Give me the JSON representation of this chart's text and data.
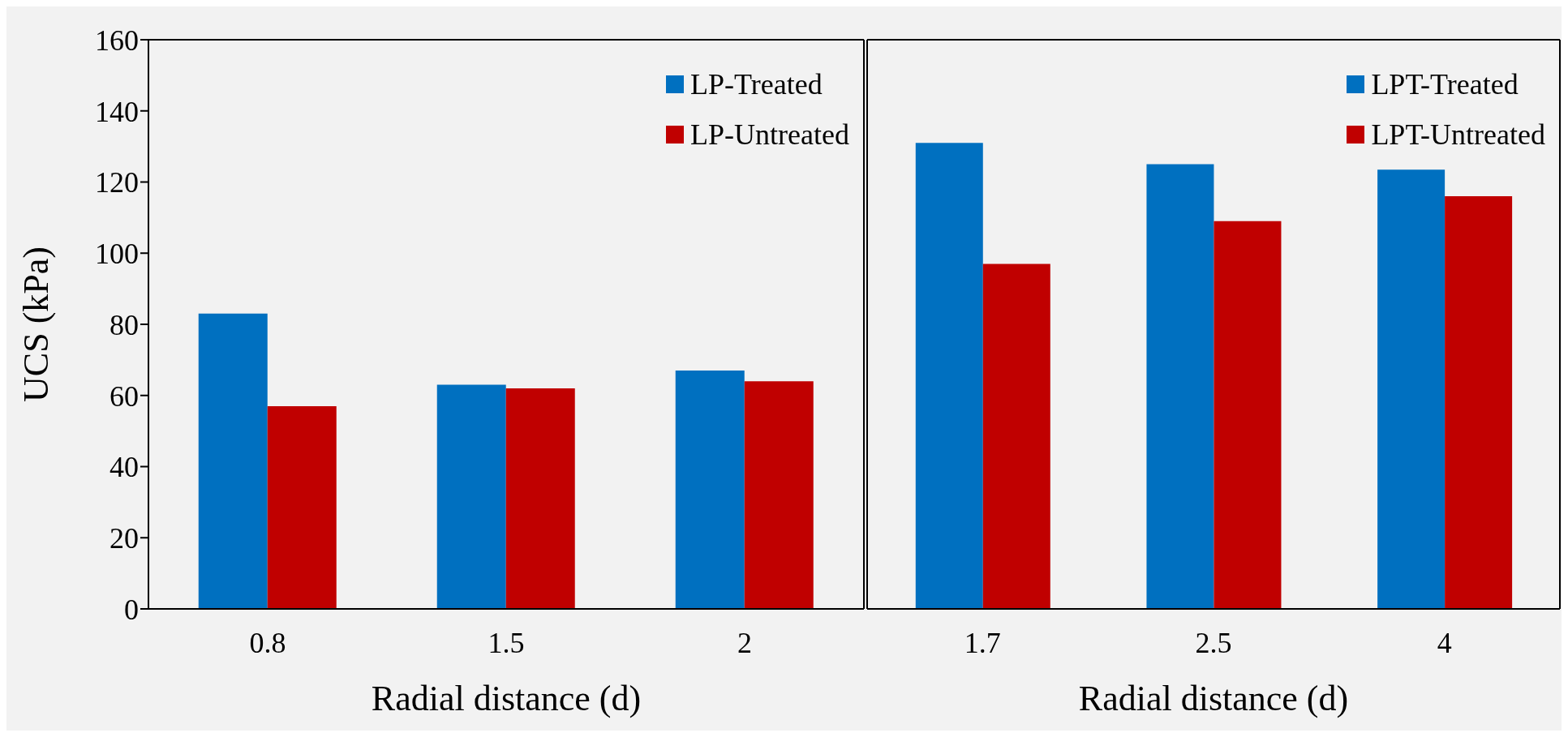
{
  "chart_data": [
    {
      "type": "bar",
      "categories": [
        "0.8",
        "1.5",
        "2"
      ],
      "xlabel": "Radial distance (d)",
      "ylabel": "UCS (kPa)",
      "ylim": [
        0,
        160
      ],
      "yticks": [
        0,
        20,
        40,
        60,
        80,
        100,
        120,
        140,
        160
      ],
      "legend": "top right",
      "grid": false,
      "series": [
        {
          "name": "LP-Treated",
          "color": "#0070c0",
          "values": [
            83,
            63,
            67
          ]
        },
        {
          "name": "LP-Untreated",
          "color": "#c00000",
          "values": [
            57,
            62,
            64
          ]
        }
      ]
    },
    {
      "type": "bar",
      "categories": [
        "1.7",
        "2.5",
        "4"
      ],
      "xlabel": "Radial distance (d)",
      "ylim": [
        0,
        160
      ],
      "yticks": [
        0,
        20,
        40,
        60,
        80,
        100,
        120,
        140,
        160
      ],
      "tick_labels": "x",
      "legend": "top right",
      "grid": false,
      "series": [
        {
          "name": "LPT-Treated",
          "color": "#0070c0",
          "values": [
            131,
            125,
            123.5
          ]
        },
        {
          "name": "LPT-Untreated",
          "color": "#c00000",
          "values": [
            97,
            109,
            116
          ]
        }
      ]
    }
  ]
}
